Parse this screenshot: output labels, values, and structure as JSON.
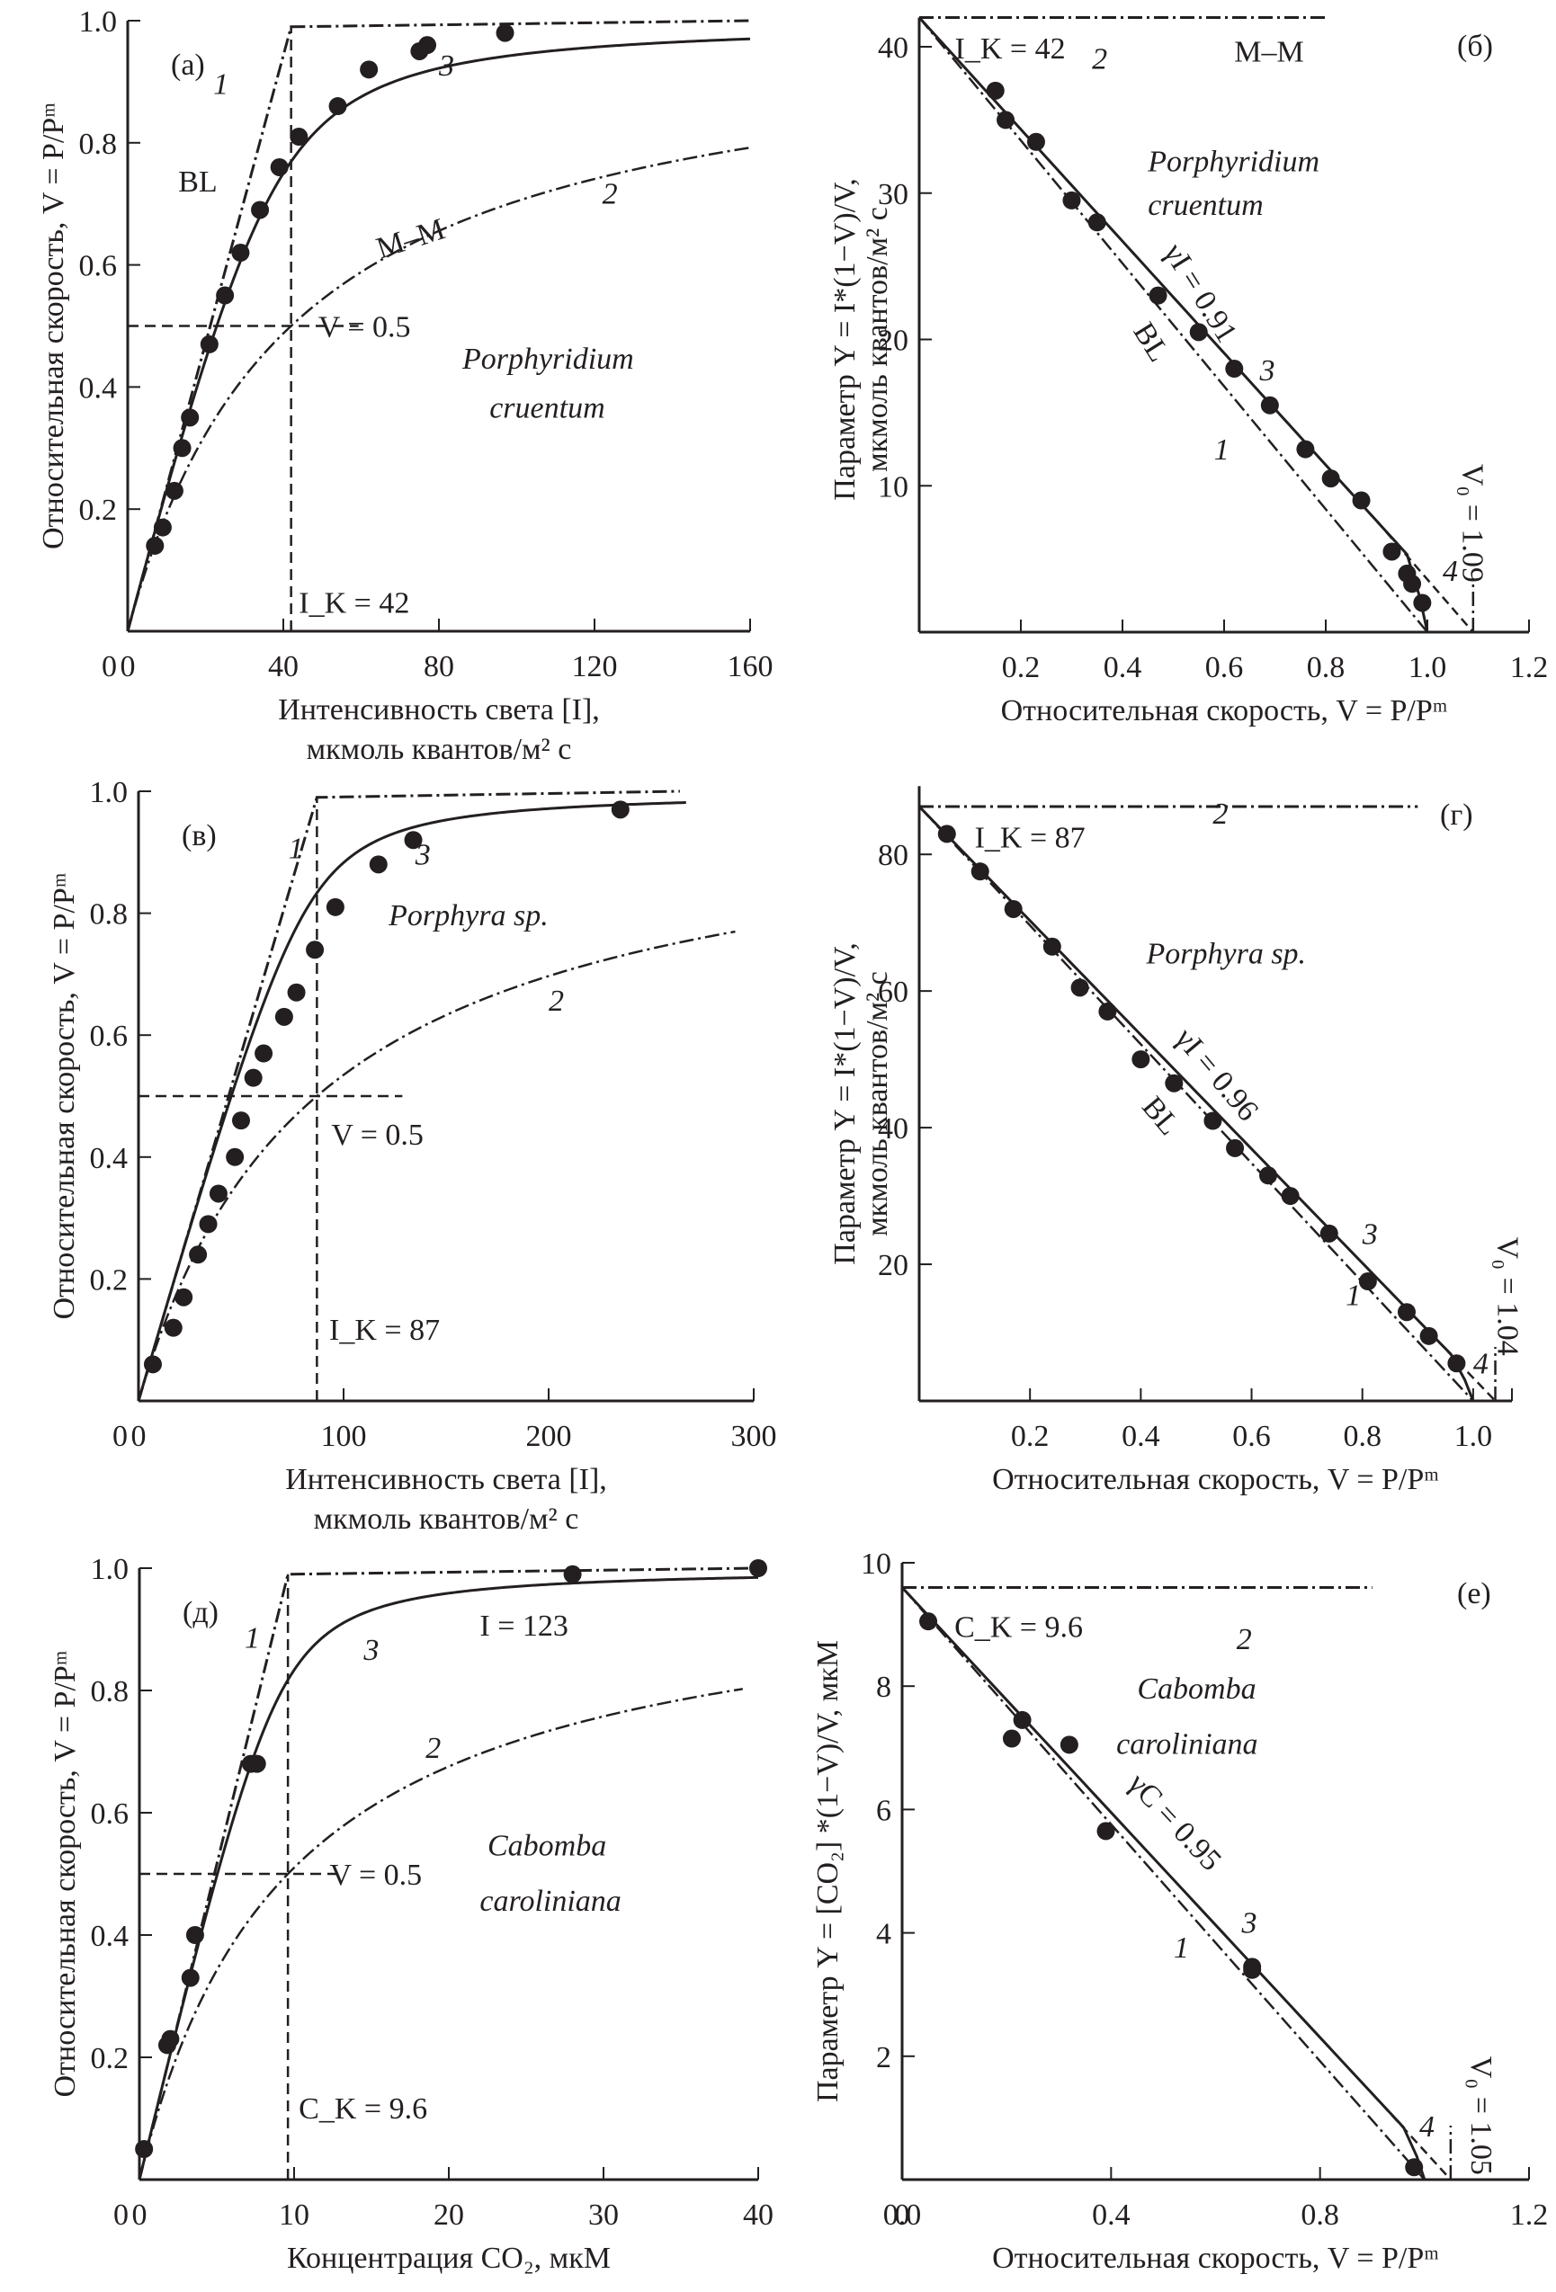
{
  "figure": {
    "panels_order": [
      "a",
      "b",
      "c",
      "d",
      "e",
      "f"
    ]
  },
  "chart_data": [
    {
      "id": "a",
      "panel_label": "(а)",
      "type": "line",
      "species": [
        "Porphyridium",
        "cruentum"
      ],
      "xlabel": [
        "Интенсивность света [I],",
        "мкмоль квантов/м² с"
      ],
      "ylabel": "Относительная скорость, V = P/Pᵐ",
      "xlim": [
        0,
        160
      ],
      "ylim": [
        0,
        1.0
      ],
      "xticks": [
        0,
        40,
        80,
        120,
        160
      ],
      "yticks": [
        0.2,
        0.4,
        0.6,
        0.8,
        1.0
      ],
      "K": 42,
      "K_label": "I_K = 42",
      "gamma": 0.91,
      "v_half_label": "V = 0.5",
      "curve_labels": {
        "1": "1",
        "2": "2",
        "3": "3",
        "bl": "BL",
        "mm": "M–M"
      },
      "points": [
        [
          7,
          0.14
        ],
        [
          9,
          0.17
        ],
        [
          12,
          0.23
        ],
        [
          14,
          0.3
        ],
        [
          16,
          0.35
        ],
        [
          21,
          0.47
        ],
        [
          25,
          0.55
        ],
        [
          29,
          0.62
        ],
        [
          34,
          0.69
        ],
        [
          39,
          0.76
        ],
        [
          44,
          0.81
        ],
        [
          54,
          0.86
        ],
        [
          62,
          0.92
        ],
        [
          75,
          0.95
        ],
        [
          77,
          0.96
        ],
        [
          97,
          0.98
        ]
      ]
    },
    {
      "id": "b",
      "panel_label": "(б)",
      "type": "line",
      "species": [
        "Porphyridium",
        "cruentum"
      ],
      "xlabel": "Относительная скорость, V = P/Pᵐ",
      "ylabel": [
        "Параметр Y = I*(1−V)/V,",
        "мкмоль квантов/м² с"
      ],
      "xlim": [
        0,
        1.2
      ],
      "ylim": [
        0,
        42
      ],
      "xticks": [
        0.2,
        0.4,
        0.6,
        0.8,
        1.0,
        1.2
      ],
      "yticks": [
        10,
        20,
        30,
        40
      ],
      "K": 42,
      "K_label": "I_K = 42",
      "gamma_label": "γI = 0.91",
      "gamma": 0.91,
      "v0_label": "V₀ = 1.09",
      "v0": 1.09,
      "curve_labels": {
        "1": "1",
        "2": "2",
        "3": "3",
        "4": "4",
        "bl": "BL",
        "mm": "M–M"
      },
      "points": [
        [
          0.15,
          37
        ],
        [
          0.17,
          35
        ],
        [
          0.23,
          33.5
        ],
        [
          0.3,
          29.5
        ],
        [
          0.35,
          28
        ],
        [
          0.47,
          23
        ],
        [
          0.55,
          20.5
        ],
        [
          0.62,
          18
        ],
        [
          0.69,
          15.5
        ],
        [
          0.76,
          12.5
        ],
        [
          0.81,
          10.5
        ],
        [
          0.87,
          9
        ],
        [
          0.93,
          5.5
        ],
        [
          0.96,
          4
        ],
        [
          0.97,
          3.3
        ],
        [
          0.99,
          2
        ]
      ]
    },
    {
      "id": "c",
      "panel_label": "(в)",
      "type": "line",
      "species": [
        "Porphyra sp."
      ],
      "xlabel": [
        "Интенсивность света [I],",
        "мкмоль квантов/м² с"
      ],
      "ylabel": "Относительная скорость, V = P/Pᵐ",
      "xlim": [
        0,
        300
      ],
      "ylim": [
        0,
        1.0
      ],
      "xticks": [
        0,
        100,
        200,
        300
      ],
      "yticks": [
        0.2,
        0.4,
        0.6,
        0.8,
        1.0
      ],
      "K": 87,
      "K_label": "I_K = 87",
      "gamma": 0.96,
      "v_half_label": "V = 0.5",
      "curve_labels": {
        "1": "1",
        "2": "2",
        "3": "3"
      },
      "points": [
        [
          7,
          0.06
        ],
        [
          17,
          0.12
        ],
        [
          22,
          0.17
        ],
        [
          29,
          0.24
        ],
        [
          34,
          0.29
        ],
        [
          39,
          0.34
        ],
        [
          47,
          0.4
        ],
        [
          50,
          0.46
        ],
        [
          56,
          0.53
        ],
        [
          61,
          0.57
        ],
        [
          71,
          0.63
        ],
        [
          77,
          0.67
        ],
        [
          86,
          0.74
        ],
        [
          96,
          0.81
        ],
        [
          117,
          0.88
        ],
        [
          134,
          0.92
        ],
        [
          235,
          0.97
        ]
      ]
    },
    {
      "id": "d",
      "panel_label": "(г)",
      "type": "line",
      "species": [
        "Porphyra sp."
      ],
      "xlabel": "Относительная скорость, V = P/Pᵐ",
      "ylabel": [
        "Параметр Y = I*(1−V)/V,",
        "мкмоль квантов/м² с"
      ],
      "xlim": [
        0,
        1.07
      ],
      "ylim": [
        0,
        88
      ],
      "xticks": [
        0.2,
        0.4,
        0.6,
        0.8,
        1.0
      ],
      "yticks": [
        20,
        40,
        60,
        80
      ],
      "K": 87,
      "K_label": "I_K = 87",
      "gamma_label": "γI = 0.96",
      "gamma": 0.96,
      "v0_label": "V₀ = 1.04",
      "v0": 1.04,
      "curve_labels": {
        "1": "1",
        "2": "2",
        "3": "3",
        "4": "4",
        "bl": "BL"
      },
      "points": [
        [
          0.05,
          83
        ],
        [
          0.11,
          77.5
        ],
        [
          0.17,
          72
        ],
        [
          0.24,
          66.5
        ],
        [
          0.29,
          60.5
        ],
        [
          0.34,
          57
        ],
        [
          0.4,
          50
        ],
        [
          0.46,
          46.5
        ],
        [
          0.53,
          41
        ],
        [
          0.57,
          37
        ],
        [
          0.63,
          33
        ],
        [
          0.67,
          30
        ],
        [
          0.74,
          24.5
        ],
        [
          0.81,
          17.5
        ],
        [
          0.88,
          13
        ],
        [
          0.92,
          9.5
        ],
        [
          0.97,
          5.5
        ]
      ]
    },
    {
      "id": "e",
      "panel_label": "(д)",
      "type": "line",
      "species": [
        "Cabomba",
        "caroliniana"
      ],
      "xlabel": [
        "Концентрация CO₂, мкМ"
      ],
      "ylabel": "Относительная скорость, V = P/Pᵐ",
      "xlim": [
        0,
        40
      ],
      "ylim": [
        0,
        1.0
      ],
      "xticks": [
        0,
        10,
        20,
        30,
        40
      ],
      "yticks": [
        0.2,
        0.4,
        0.6,
        0.8,
        1.0
      ],
      "K": 9.6,
      "K_label": "C_K = 9.6",
      "gamma": 0.95,
      "v_half_label": "V = 0.5",
      "intensity_label": "I = 123",
      "curve_labels": {
        "1": "1",
        "2": "2",
        "3": "3"
      },
      "points": [
        [
          0.3,
          0.05
        ],
        [
          1.8,
          0.22
        ],
        [
          2.0,
          0.23
        ],
        [
          3.3,
          0.33
        ],
        [
          3.6,
          0.4
        ],
        [
          7.2,
          0.68
        ],
        [
          7.6,
          0.68
        ],
        [
          28,
          0.99
        ],
        [
          40,
          1.0
        ]
      ]
    },
    {
      "id": "f",
      "panel_label": "(е)",
      "type": "line",
      "species": [
        "Cabomba",
        "caroliniana"
      ],
      "xlabel": "Относительная скорость, V = P/Pᵐ",
      "ylabel": "Параметр Y = [CO₂] *(1−V)/V, мкМ",
      "xlim": [
        0,
        1.2
      ],
      "ylim": [
        0,
        10
      ],
      "xticks": [
        0,
        0.4,
        0.8,
        1.2
      ],
      "yticks": [
        2,
        4,
        6,
        8,
        10
      ],
      "K": 9.6,
      "K_label": "C_K = 9.6",
      "gamma_label": "γC = 0.95",
      "gamma": 0.95,
      "v0_label": "V₀ = 1.05",
      "v0": 1.05,
      "curve_labels": {
        "1": "1",
        "2": "2",
        "3": "3",
        "4": "4"
      },
      "points": [
        [
          0.05,
          9.05
        ],
        [
          0.21,
          7.15
        ],
        [
          0.23,
          7.45
        ],
        [
          0.32,
          7.05
        ],
        [
          0.39,
          5.65
        ],
        [
          0.67,
          3.45
        ],
        [
          0.67,
          3.4
        ],
        [
          0.98,
          0.2
        ]
      ]
    }
  ]
}
